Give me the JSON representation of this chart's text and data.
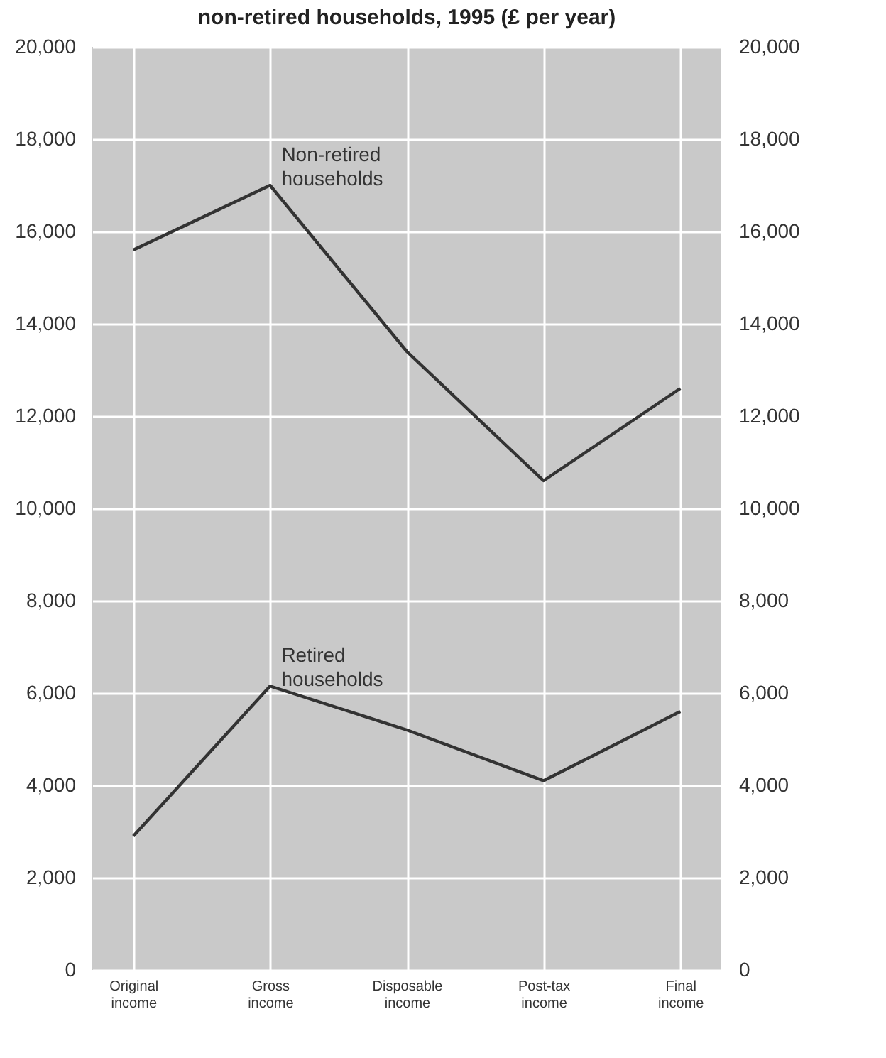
{
  "chart_data": {
    "type": "line",
    "title": "non-retired households, 1995 (£ per year)",
    "categories": [
      "Original income",
      "Gross income",
      "Disposable income",
      "Post-tax income",
      "Final income"
    ],
    "series": [
      {
        "name": "Non-retired households",
        "color": "#333333",
        "values": [
          15600,
          17000,
          13400,
          10600,
          12600
        ]
      },
      {
        "name": "Retired households",
        "color": "#333333",
        "values": [
          2900,
          6150,
          5200,
          4100,
          5600
        ]
      }
    ],
    "ylim": [
      0,
      20000
    ],
    "yticks": [
      0,
      {
        "value": 2000,
        "label": "2,000"
      },
      {
        "value": 4000,
        "label": "4,000"
      },
      {
        "value": 6000,
        "label": "6,000"
      },
      {
        "value": 8000,
        "label": "8,000"
      },
      {
        "value": 10000,
        "label": "10,000"
      },
      {
        "value": 12000,
        "label": "12,000"
      },
      {
        "value": 14000,
        "label": "14,000"
      },
      {
        "value": 16000,
        "label": "16,000"
      },
      {
        "value": 18000,
        "label": "18,000"
      },
      {
        "value": 20000,
        "label": "20,000"
      }
    ],
    "y2lim": [
      0,
      20000
    ],
    "y2ticks": [
      0,
      {
        "value": 2000,
        "label": "2,000"
      },
      {
        "value": 4000,
        "label": "4,000"
      },
      {
        "value": 6000,
        "label": "6,000"
      },
      {
        "value": 8000,
        "label": "8,000"
      },
      {
        "value": 10000,
        "label": "10,000"
      },
      {
        "value": 12000,
        "label": "12,000"
      },
      {
        "value": 14000,
        "label": "14,000"
      },
      {
        "value": 16000,
        "label": "16,000"
      },
      {
        "value": 18000,
        "label": "18,000"
      },
      {
        "value": 20000,
        "label": "20,000"
      }
    ],
    "grid": true,
    "legend": false,
    "marker": "none",
    "line_style": "solid"
  }
}
